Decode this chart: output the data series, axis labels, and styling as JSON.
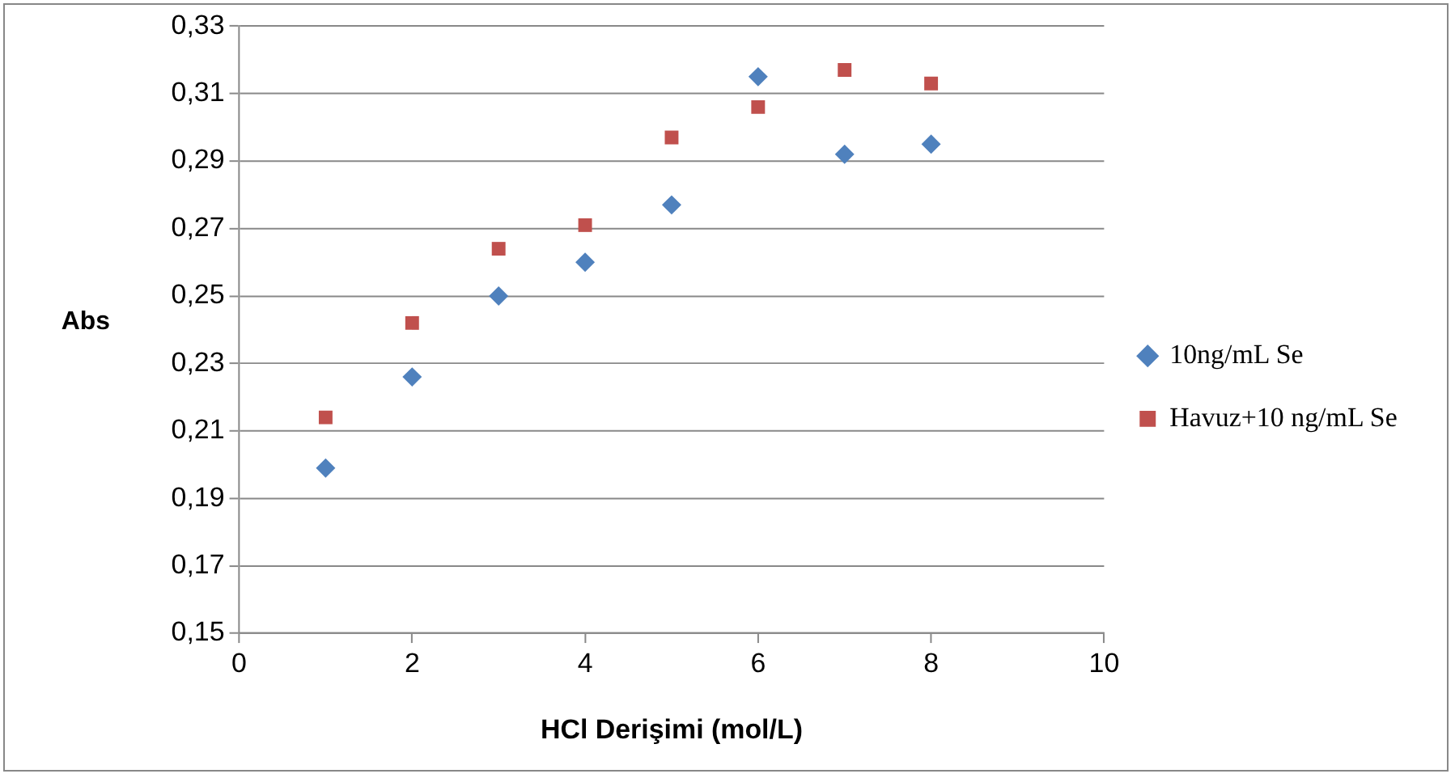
{
  "chart_data": {
    "type": "scatter",
    "xlabel": "HCl Derişimi (mol/L)",
    "ylabel": "Abs",
    "x": [
      1,
      2,
      3,
      4,
      5,
      6,
      7,
      8
    ],
    "series": [
      {
        "name": "10ng/mL Se",
        "color": "#4f81bd",
        "marker": "diamond",
        "values": [
          0.199,
          0.226,
          0.25,
          0.26,
          0.277,
          0.315,
          0.292,
          0.295
        ]
      },
      {
        "name": "Havuz+10 ng/mL Se",
        "color": "#c0504d",
        "marker": "square",
        "values": [
          0.214,
          0.242,
          0.264,
          0.271,
          0.297,
          0.306,
          0.317,
          0.313
        ]
      }
    ],
    "xlim": [
      0,
      10
    ],
    "xticks": [
      0,
      2,
      4,
      6,
      8,
      10
    ],
    "ylim": [
      0.15,
      0.33
    ],
    "yticks": [
      {
        "value": 0.15,
        "label": "0,15"
      },
      {
        "value": 0.17,
        "label": "0,17"
      },
      {
        "value": 0.19,
        "label": "0,19"
      },
      {
        "value": 0.21,
        "label": "0,21"
      },
      {
        "value": 0.23,
        "label": "0,23"
      },
      {
        "value": 0.25,
        "label": "0,25"
      },
      {
        "value": 0.27,
        "label": "0,27"
      },
      {
        "value": 0.29,
        "label": "0,29"
      },
      {
        "value": 0.31,
        "label": "0,31"
      },
      {
        "value": 0.33,
        "label": "0,33"
      }
    ],
    "grid": "y",
    "legend": "right"
  }
}
